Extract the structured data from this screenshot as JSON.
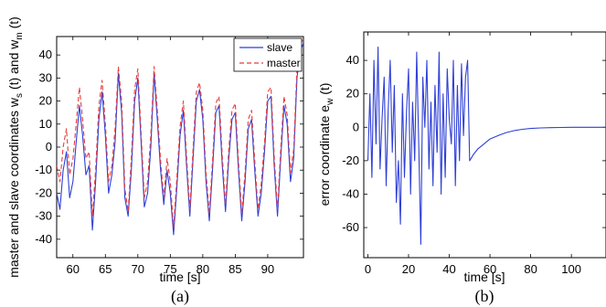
{
  "chart_data": [
    {
      "panel_label": "(a)",
      "type": "line",
      "xlabel": "time [s]",
      "ylabel": "master and slave coordinates w",
      "ylabel_sub_s": "s",
      "ylabel_mid": " (t) and w",
      "ylabel_sub_m": "m",
      "ylabel_end": " (t)",
      "xlim": [
        57.5,
        95.5
      ],
      "ylim": [
        -48,
        48
      ],
      "xticks": [
        60,
        65,
        70,
        75,
        80,
        85,
        90
      ],
      "yticks": [
        -40,
        -30,
        -20,
        -10,
        0,
        10,
        20,
        30,
        40
      ],
      "legend_position": "top-right",
      "series": [
        {
          "name": "slave",
          "color": "#2f3fd6",
          "style": "solid",
          "x": [
            57.5,
            58.0,
            58.5,
            59.0,
            59.5,
            60.0,
            60.5,
            61.0,
            61.5,
            62.0,
            62.5,
            63.0,
            63.5,
            64.0,
            64.5,
            65.0,
            65.5,
            66.0,
            66.5,
            67.0,
            67.5,
            68.0,
            68.5,
            69.0,
            69.5,
            70.0,
            70.5,
            71.0,
            71.5,
            72.0,
            72.5,
            73.0,
            73.5,
            74.0,
            74.5,
            75.0,
            75.5,
            76.0,
            76.5,
            77.0,
            77.5,
            78.0,
            78.5,
            79.0,
            79.5,
            80.0,
            80.5,
            81.0,
            81.5,
            82.0,
            82.5,
            83.0,
            83.5,
            84.0,
            84.5,
            85.0,
            85.5,
            86.0,
            86.5,
            87.0,
            87.5,
            88.0,
            88.5,
            89.0,
            89.5,
            90.0,
            90.5,
            91.0,
            91.5,
            92.0,
            92.5,
            93.0,
            93.5,
            94.0,
            94.5,
            95.0,
            95.5
          ],
          "values": [
            -20,
            -27,
            -10,
            -2,
            -22,
            -15,
            2,
            18,
            5,
            -12,
            -8,
            -36,
            -15,
            12,
            24,
            5,
            -20,
            -12,
            2,
            32,
            15,
            -22,
            -30,
            -10,
            20,
            30,
            2,
            -26,
            -20,
            0,
            32,
            12,
            -10,
            -25,
            -10,
            -20,
            -38,
            -18,
            5,
            16,
            -8,
            -30,
            -5,
            20,
            25,
            12,
            -15,
            -32,
            -10,
            15,
            18,
            -8,
            -28,
            -5,
            12,
            15,
            -10,
            -32,
            -15,
            8,
            12,
            -10,
            -30,
            -20,
            -2,
            20,
            22,
            -8,
            -30,
            -5,
            18,
            10,
            -15,
            -5,
            30,
            42,
            45
          ]
        },
        {
          "name": "master",
          "color": "#e83c3c",
          "style": "dashed",
          "x": [
            57.5,
            58.0,
            58.5,
            59.0,
            59.5,
            60.0,
            60.5,
            61.0,
            61.5,
            62.0,
            62.5,
            63.0,
            63.5,
            64.0,
            64.5,
            65.0,
            65.5,
            66.0,
            66.5,
            67.0,
            67.5,
            68.0,
            68.5,
            69.0,
            69.5,
            70.0,
            70.5,
            71.0,
            71.5,
            72.0,
            72.5,
            73.0,
            73.5,
            74.0,
            74.5,
            75.0,
            75.5,
            76.0,
            76.5,
            77.0,
            77.5,
            78.0,
            78.5,
            79.0,
            79.5,
            80.0,
            80.5,
            81.0,
            81.5,
            82.0,
            82.5,
            83.0,
            83.5,
            84.0,
            84.5,
            85.0,
            85.5,
            86.0,
            86.5,
            87.0,
            87.5,
            88.0,
            88.5,
            89.0,
            89.5,
            90.0,
            90.5,
            91.0,
            91.5,
            92.0,
            92.5,
            93.0,
            93.5,
            94.0,
            94.5,
            95.0,
            95.5
          ],
          "values": [
            -8,
            -15,
            0,
            8,
            -12,
            -5,
            10,
            26,
            12,
            -5,
            -2,
            -30,
            -10,
            18,
            29,
            10,
            -15,
            -8,
            8,
            35,
            20,
            -18,
            -28,
            -5,
            25,
            34,
            6,
            -22,
            -15,
            5,
            35,
            16,
            -6,
            -22,
            -5,
            -15,
            -35,
            -14,
            9,
            20,
            -4,
            -27,
            -1,
            24,
            28,
            16,
            -11,
            -29,
            -6,
            19,
            22,
            -4,
            -25,
            -1,
            16,
            19,
            -6,
            -29,
            -11,
            12,
            16,
            -6,
            -27,
            -16,
            2,
            24,
            26,
            -4,
            -27,
            -1,
            22,
            14,
            -11,
            -1,
            34,
            45,
            47
          ]
        }
      ]
    },
    {
      "panel_label": "(b)",
      "type": "line",
      "xlabel": "time [s]",
      "ylabel": "error coordinate e",
      "ylabel_sub": "w",
      "ylabel_end": " (t)",
      "xlim": [
        -2,
        117
      ],
      "ylim": [
        -78,
        57
      ],
      "xticks": [
        0,
        20,
        40,
        60,
        80,
        100
      ],
      "yticks": [
        -60,
        -40,
        -20,
        0,
        20,
        40
      ],
      "series": [
        {
          "name": "",
          "color": "#2f3fd6",
          "style": "solid",
          "x": [
            0,
            1,
            2,
            3,
            4,
            5,
            6,
            7,
            8,
            9,
            10,
            11,
            12,
            13,
            14,
            15,
            16,
            17,
            18,
            19,
            20,
            21,
            22,
            23,
            24,
            25,
            26,
            27,
            28,
            29,
            30,
            31,
            32,
            33,
            34,
            35,
            36,
            37,
            38,
            39,
            40,
            41,
            42,
            43,
            44,
            45,
            46,
            47,
            48,
            49,
            50,
            52,
            54,
            56,
            58,
            60,
            62,
            65,
            68,
            72,
            76,
            80,
            85,
            90,
            95,
            100,
            105,
            110,
            117
          ],
          "values": [
            -20,
            20,
            -30,
            40,
            -10,
            48,
            -25,
            5,
            30,
            -35,
            10,
            40,
            -15,
            25,
            -45,
            -20,
            -58,
            20,
            -30,
            10,
            35,
            -40,
            15,
            -20,
            45,
            -10,
            -70,
            30,
            0,
            40,
            -25,
            15,
            -35,
            25,
            -15,
            45,
            -40,
            20,
            -30,
            35,
            5,
            -10,
            40,
            -35,
            25,
            -20,
            38,
            -5,
            30,
            40,
            -20,
            -16,
            -13,
            -11,
            -9,
            -7,
            -6,
            -4.5,
            -3.2,
            -2,
            -1.2,
            -0.7,
            -0.4,
            -0.2,
            -0.1,
            0,
            0,
            0,
            0
          ]
        }
      ]
    }
  ]
}
